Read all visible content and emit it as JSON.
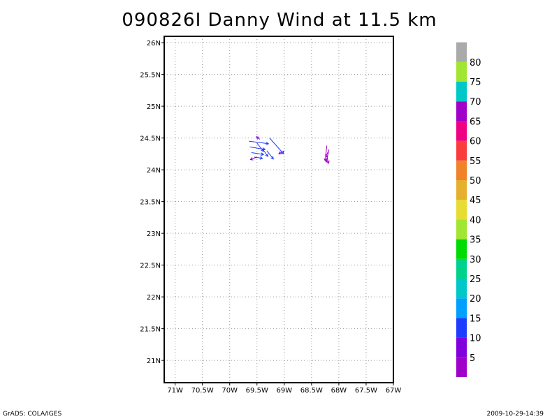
{
  "title": "090826I Danny Wind at 11.5 km",
  "footer": {
    "left": "GrADS: COLA/IGES",
    "right": "2009-10-29-14:39"
  },
  "chart_data": {
    "type": "map",
    "lon_range": [
      -71.2,
      -67
    ],
    "lat_range": [
      20.65,
      26.1
    ],
    "grid": true,
    "x_ticks": [
      {
        "lon": -71,
        "label": "71W"
      },
      {
        "lon": -70.5,
        "label": "70.5W"
      },
      {
        "lon": -70,
        "label": "70W"
      },
      {
        "lon": -69.5,
        "label": "69.5W"
      },
      {
        "lon": -69,
        "label": "69W"
      },
      {
        "lon": -68.5,
        "label": "68.5W"
      },
      {
        "lon": -68,
        "label": "68W"
      },
      {
        "lon": -67.5,
        "label": "67.5W"
      },
      {
        "lon": -67,
        "label": "67W"
      }
    ],
    "y_ticks": [
      {
        "lat": 21,
        "label": "21N"
      },
      {
        "lat": 21.5,
        "label": "21.5N"
      },
      {
        "lat": 22,
        "label": "22N"
      },
      {
        "lat": 22.5,
        "label": "22.5N"
      },
      {
        "lat": 23,
        "label": "23N"
      },
      {
        "lat": 23.5,
        "label": "23.5N"
      },
      {
        "lat": 24,
        "label": "24N"
      },
      {
        "lat": 24.5,
        "label": "24.5N"
      },
      {
        "lat": 25,
        "label": "25N"
      },
      {
        "lat": 25.5,
        "label": "25.5N"
      },
      {
        "lat": 26,
        "label": "26N"
      }
    ],
    "colorbar": [
      {
        "color": "#a000c8",
        "label": "5"
      },
      {
        "color": "#8200dc",
        "label": "10"
      },
      {
        "color": "#1e3cff",
        "label": "15"
      },
      {
        "color": "#00a0ff",
        "label": "20"
      },
      {
        "color": "#00c8c8",
        "label": "25"
      },
      {
        "color": "#00d28c",
        "label": "30"
      },
      {
        "color": "#00dc00",
        "label": "35"
      },
      {
        "color": "#a0e632",
        "label": "40"
      },
      {
        "color": "#e6dc32",
        "label": "45"
      },
      {
        "color": "#e6af2d",
        "label": "50"
      },
      {
        "color": "#f08228",
        "label": "55"
      },
      {
        "color": "#fa3c3c",
        "label": "60"
      },
      {
        "color": "#f00082",
        "label": "65"
      },
      {
        "color": "#a000c8",
        "label": "70"
      },
      {
        "color": "#00c8c8",
        "label": "75"
      },
      {
        "color": "#a0e632",
        "label": "80"
      },
      {
        "color": "#aaaaaa",
        "label": ""
      }
    ],
    "wind_vectors": [
      {
        "lon": -69.65,
        "lat": 24.45,
        "u": 0.36,
        "v": -0.04,
        "color": "#1e3cff"
      },
      {
        "lon": -69.63,
        "lat": 24.36,
        "u": 0.28,
        "v": -0.04,
        "color": "#1e3cff"
      },
      {
        "lon": -69.6,
        "lat": 24.27,
        "u": 0.22,
        "v": -0.03,
        "color": "#1e3cff"
      },
      {
        "lon": -69.55,
        "lat": 24.2,
        "u": 0.15,
        "v": -0.02,
        "color": "#1e3cff"
      },
      {
        "lon": -69.5,
        "lat": 24.42,
        "u": 0.12,
        "v": -0.13,
        "color": "#1e3cff"
      },
      {
        "lon": -69.4,
        "lat": 24.33,
        "u": 0.1,
        "v": -0.12,
        "color": "#1e3cff"
      },
      {
        "lon": -69.32,
        "lat": 24.3,
        "u": 0.12,
        "v": -0.13,
        "color": "#1e3cff"
      },
      {
        "lon": -69.27,
        "lat": 24.5,
        "u": 0.26,
        "v": -0.25,
        "color": "#1e3cff"
      },
      {
        "lon": -69.5,
        "lat": 24.2,
        "u": -0.12,
        "v": -0.04,
        "color": "#8200dc"
      },
      {
        "lon": -69.45,
        "lat": 24.48,
        "u": -0.06,
        "v": 0.04,
        "color": "#8200dc"
      },
      {
        "lon": -69.0,
        "lat": 24.3,
        "u": -0.1,
        "v": -0.05,
        "color": "#8200dc"
      },
      {
        "lon": -68.22,
        "lat": 24.38,
        "u": -0.03,
        "v": -0.24,
        "color": "#a000c8"
      },
      {
        "lon": -68.18,
        "lat": 24.32,
        "u": -0.05,
        "v": -0.2,
        "color": "#a000c8"
      },
      {
        "lon": -68.22,
        "lat": 24.22,
        "u": 0.03,
        "v": -0.12,
        "color": "#a000c8"
      },
      {
        "lon": -68.2,
        "lat": 24.28,
        "u": -0.04,
        "v": -0.08,
        "color": "#a000c8"
      }
    ]
  }
}
